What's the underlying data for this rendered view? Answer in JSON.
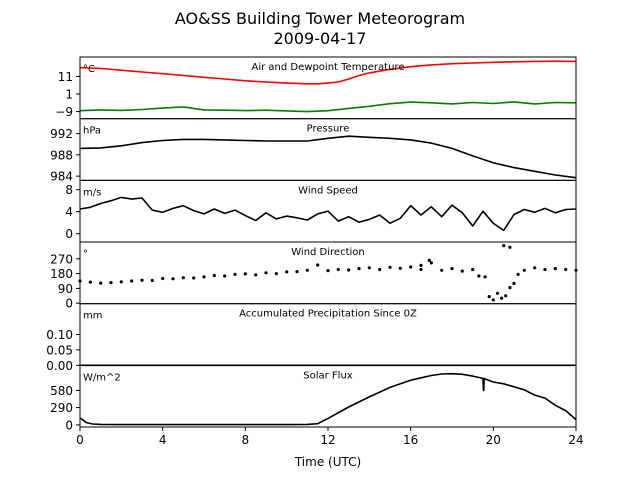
{
  "title": "AO&SS Building Tower Meteorogram",
  "subtitle": "2009-04-17",
  "xlabel": "Time (UTC)",
  "x_ticks": [
    0,
    4,
    8,
    12,
    16,
    20,
    24
  ],
  "x_range": [
    0,
    24
  ],
  "colors": {
    "temperature": "#ff0000",
    "dewpoint": "#008000",
    "default": "#000000"
  },
  "chart_data": [
    {
      "id": "temp",
      "type": "line",
      "title": "Air and Dewpoint Temperature",
      "unit": "°C",
      "ylim": [
        -13,
        22
      ],
      "y_ticks": [
        {
          "v": 11,
          "label": "11"
        },
        {
          "v": 1,
          "label": "1"
        },
        {
          "v": -9,
          "label": "−9"
        }
      ],
      "series": [
        {
          "color": "#ff0000",
          "x": [
            0,
            1,
            2,
            3,
            4,
            5,
            6,
            7,
            8,
            9,
            10,
            11,
            11.5,
            12,
            12.5,
            13,
            13.5,
            14,
            15,
            16,
            17,
            18,
            19,
            20,
            21,
            22,
            23,
            24
          ],
          "y": [
            16,
            15.5,
            14.5,
            13.5,
            12.5,
            11.5,
            10.5,
            9.5,
            8.5,
            7.8,
            7.2,
            6.8,
            6.8,
            7.2,
            7.8,
            9.5,
            11.5,
            13,
            15,
            16.5,
            17.5,
            18.2,
            18.6,
            19,
            19.3,
            19.5,
            19.6,
            19.5
          ]
        },
        {
          "color": "#008000",
          "x": [
            0,
            1,
            2,
            3,
            4,
            5,
            6,
            7,
            8,
            9,
            10,
            11,
            12,
            13,
            14,
            15,
            16,
            17,
            18,
            19,
            20,
            21,
            22,
            23,
            24
          ],
          "y": [
            -8.5,
            -8,
            -8.3,
            -7.8,
            -7,
            -6.3,
            -8,
            -8.2,
            -8.4,
            -8.2,
            -8.6,
            -9,
            -8.5,
            -7.2,
            -6,
            -4.5,
            -3.6,
            -4,
            -4.6,
            -3.8,
            -4.4,
            -3.5,
            -4.6,
            -3.8,
            -4
          ]
        }
      ]
    },
    {
      "id": "pressure",
      "type": "line",
      "title": "Pressure",
      "unit": "hPa",
      "ylim": [
        983.2,
        994.8
      ],
      "y_ticks": [
        {
          "v": 992,
          "label": "992"
        },
        {
          "v": 988,
          "label": "988"
        },
        {
          "v": 984,
          "label": "984"
        }
      ],
      "series": [
        {
          "color": "#000000",
          "x": [
            0,
            1,
            2,
            3,
            4,
            5,
            6,
            7,
            8,
            9,
            10,
            11,
            12,
            13,
            14,
            15,
            16,
            17,
            18,
            19,
            20,
            21,
            22,
            23,
            24
          ],
          "y": [
            989.2,
            989.3,
            989.7,
            990.3,
            990.7,
            990.9,
            990.9,
            990.8,
            990.7,
            990.6,
            990.6,
            990.6,
            991.1,
            991.5,
            991.3,
            991.1,
            990.8,
            990.2,
            989.2,
            987.8,
            986.5,
            985.6,
            984.9,
            984.2,
            983.7
          ]
        }
      ]
    },
    {
      "id": "wind-speed",
      "type": "line",
      "title": "Wind Speed",
      "unit": "m/s",
      "ylim": [
        -1.5,
        9.7
      ],
      "y_ticks": [
        {
          "v": 8,
          "label": "8"
        },
        {
          "v": 4,
          "label": "4"
        },
        {
          "v": 0,
          "label": "0"
        }
      ],
      "series": [
        {
          "color": "#000000",
          "x": [
            0,
            0.5,
            1,
            1.5,
            2,
            2.5,
            3,
            3.5,
            4,
            4.5,
            5,
            5.5,
            6,
            6.5,
            7,
            7.5,
            8,
            8.5,
            9,
            9.5,
            10,
            10.5,
            11,
            11.5,
            12,
            12.5,
            13,
            13.5,
            14,
            14.5,
            15,
            15.5,
            16,
            16.5,
            17,
            17.5,
            18,
            18.5,
            19,
            19.5,
            20,
            20.5,
            21,
            21.5,
            22,
            22.5,
            23,
            23.5,
            24
          ],
          "y": [
            4.5,
            4.8,
            5.5,
            6,
            6.6,
            6.3,
            6.5,
            4.3,
            3.9,
            4.6,
            5.1,
            4.2,
            3.6,
            4.5,
            3.7,
            4.3,
            3.3,
            2.4,
            3.8,
            2.7,
            3.2,
            2.9,
            2.5,
            3.6,
            4.1,
            2.3,
            3.1,
            2.1,
            2.6,
            3.4,
            1.9,
            2.8,
            5.1,
            3.4,
            4.9,
            3.1,
            5.2,
            3.8,
            1.4,
            4.1,
            1.9,
            0.6,
            3.5,
            4.4,
            3.9,
            4.6,
            3.8,
            4.4,
            4.5
          ]
        }
      ]
    },
    {
      "id": "wind-direction",
      "type": "scatter",
      "title": "Wind Direction",
      "unit": "°",
      "ylim": [
        -3,
        372
      ],
      "y_ticks": [
        {
          "v": 270,
          "label": "270"
        },
        {
          "v": 180,
          "label": "180"
        },
        {
          "v": 90,
          "label": "90"
        },
        {
          "v": 0,
          "label": "0"
        }
      ],
      "series": [
        {
          "color": "#000000",
          "x": [
            0,
            0.5,
            1,
            1.5,
            2,
            2.5,
            3,
            3.5,
            4,
            4.5,
            5,
            5.5,
            6,
            6.5,
            7,
            7.5,
            8,
            8.5,
            9,
            9.5,
            10,
            10.5,
            11,
            11.5,
            12,
            12.5,
            13,
            13.5,
            14,
            14.5,
            15,
            15.5,
            16,
            16.5,
            17,
            17.5,
            18,
            18.5,
            19,
            19.3,
            19.6,
            19.8,
            20,
            20.2,
            20.4,
            20.6,
            20.8,
            21,
            21.2,
            21.5,
            22,
            22.5,
            23,
            23.5,
            24
          ],
          "y": [
            135,
            128,
            122,
            125,
            130,
            135,
            140,
            138,
            150,
            148,
            155,
            153,
            160,
            168,
            165,
            175,
            178,
            172,
            185,
            180,
            190,
            192,
            200,
            232,
            198,
            205,
            202,
            210,
            215,
            205,
            218,
            212,
            220,
            205,
            245,
            200,
            210,
            195,
            205,
            165,
            160,
            40,
            20,
            60,
            30,
            45,
            95,
            120,
            175,
            200,
            215,
            205,
            210,
            205,
            200
          ]
        },
        {
          "color": "#000000",
          "x": [
            16.5,
            16.9,
            20.5,
            20.8
          ],
          "y": [
            230,
            260,
            350,
            340
          ]
        }
      ]
    },
    {
      "id": "precip",
      "type": "line",
      "title": "Accumulated Precipitation Since 0Z",
      "unit": "mm",
      "ylim": [
        0,
        0.2
      ],
      "y_ticks": [
        {
          "v": 0.1,
          "label": "0.10"
        },
        {
          "v": 0.05,
          "label": "0.05"
        },
        {
          "v": 0,
          "label": "0.00"
        }
      ],
      "series": [
        {
          "color": "#000000",
          "x": [
            0,
            24
          ],
          "y": [
            0,
            0
          ]
        }
      ]
    },
    {
      "id": "solar",
      "type": "line",
      "title": "Solar Flux",
      "unit": "W/m^2",
      "ylim": [
        -35,
        1000
      ],
      "y_ticks": [
        {
          "v": 580,
          "label": "580"
        },
        {
          "v": 290,
          "label": "290"
        },
        {
          "v": 0,
          "label": "0"
        }
      ],
      "series": [
        {
          "color": "#000000",
          "x": [
            0,
            0.3,
            0.6,
            1,
            2,
            4,
            6,
            8,
            10,
            11,
            11.5,
            12,
            13,
            14,
            15,
            16,
            17,
            17.5,
            18,
            18.5,
            19,
            19.5,
            19.52,
            19.54,
            19.56,
            19.6,
            20,
            20.5,
            21,
            21.5,
            22,
            22.5,
            23,
            23.5,
            24
          ],
          "y": [
            120,
            40,
            15,
            8,
            5,
            5,
            5,
            5,
            5,
            8,
            20,
            110,
            300,
            470,
            630,
            750,
            830,
            855,
            860,
            850,
            820,
            780,
            580,
            580,
            780,
            770,
            720,
            690,
            640,
            590,
            500,
            450,
            330,
            240,
            90
          ]
        }
      ]
    }
  ]
}
